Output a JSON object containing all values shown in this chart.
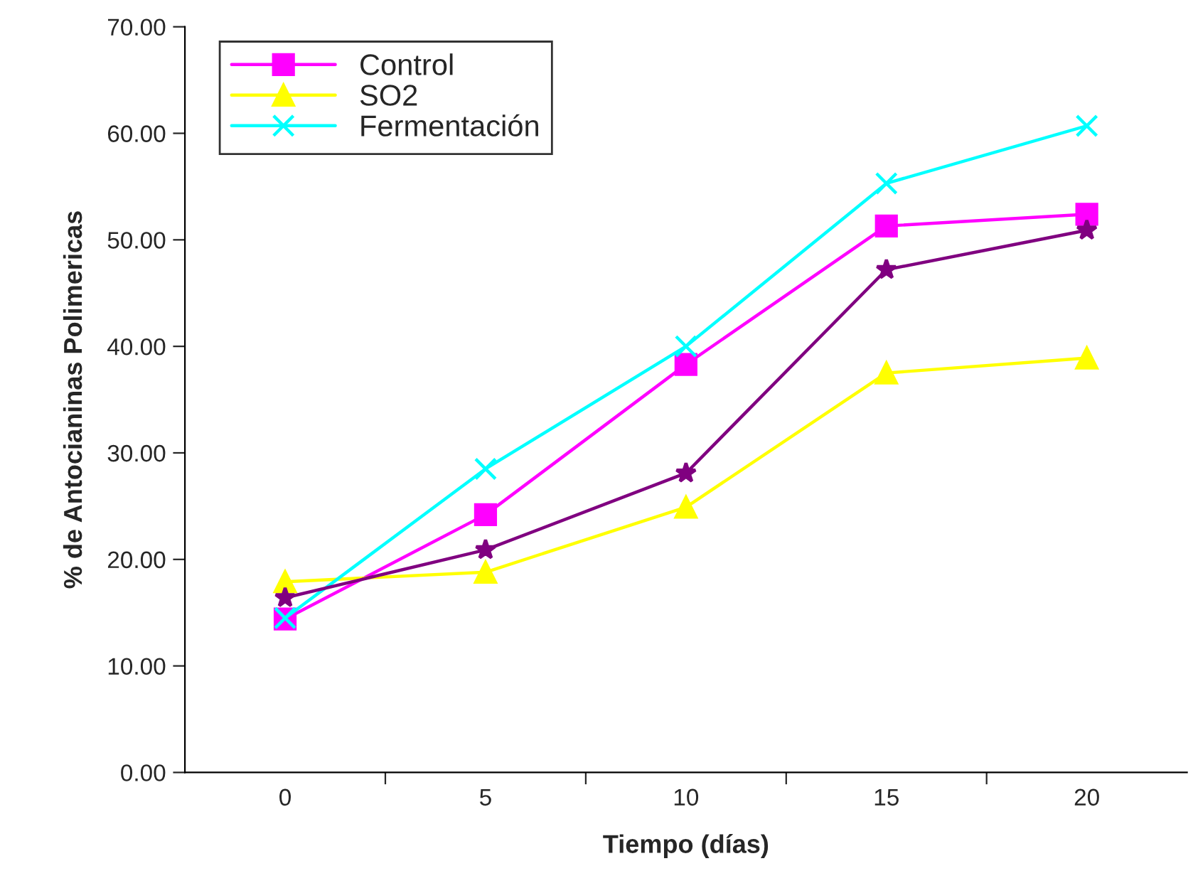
{
  "chart_data": {
    "type": "line",
    "xlabel": "Tiempo (días)",
    "ylabel": "% de Antocianinas Polimericas",
    "categories": [
      "0",
      "5",
      "10",
      "15",
      "20"
    ],
    "series": [
      {
        "name": "Control",
        "color": "#ff00ff",
        "marker": "square",
        "values": [
          14.4,
          24.2,
          38.3,
          51.3,
          52.4
        ]
      },
      {
        "name": "SO2",
        "color": "#ffff00",
        "marker": "triangle",
        "values": [
          17.9,
          18.8,
          24.9,
          37.5,
          38.9
        ]
      },
      {
        "name": "Fermentación",
        "color": "#00ffff",
        "marker": "cross",
        "values": [
          14.5,
          28.5,
          40.0,
          55.3,
          60.7
        ]
      },
      {
        "color": "#800080",
        "marker": "star",
        "values": [
          16.4,
          20.9,
          28.1,
          47.2,
          50.9
        ]
      }
    ],
    "ylim": [
      0,
      70
    ],
    "yticks": [
      {
        "value": 0,
        "label": "0.00"
      },
      {
        "value": 10,
        "label": "10.00"
      },
      {
        "value": 20,
        "label": "20.00"
      },
      {
        "value": 30,
        "label": "30.00"
      },
      {
        "value": 40,
        "label": "40.00"
      },
      {
        "value": 50,
        "label": "50.00"
      },
      {
        "value": 60,
        "label": "60.00"
      },
      {
        "value": 70,
        "label": "70.00"
      }
    ],
    "grid": false,
    "legend": "top left"
  }
}
